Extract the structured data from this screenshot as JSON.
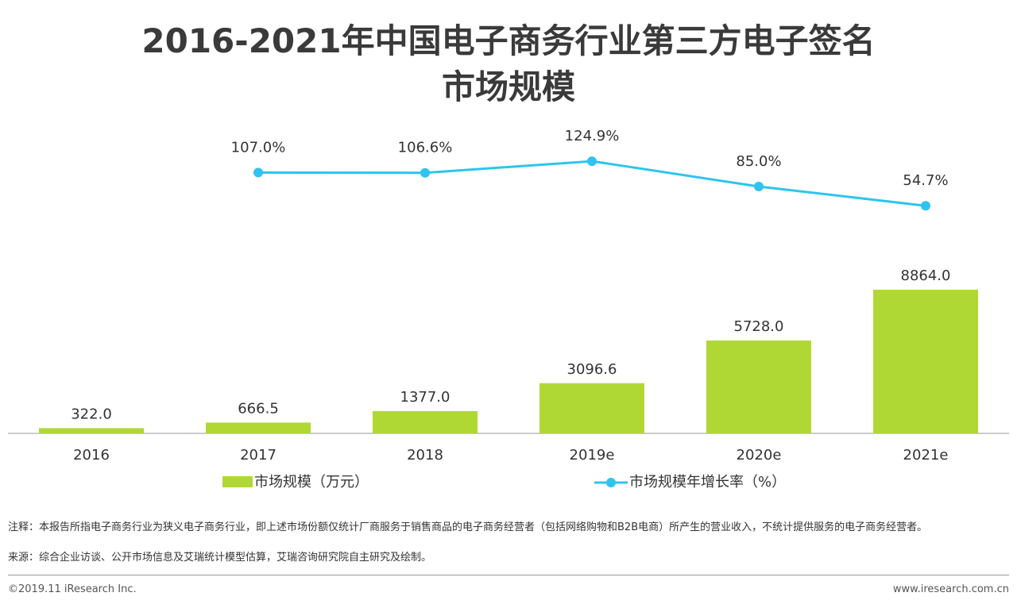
{
  "chart_data": {
    "type": "bar-line",
    "title": [
      "2016-2021年中国电子商务行业第三方电子签名",
      "市场规模"
    ],
    "categories": [
      "2016",
      "2017",
      "2018",
      "2019e",
      "2020e",
      "2021e"
    ],
    "series": [
      {
        "name": "市场规模（万元）",
        "type": "bar",
        "color": "#afd834",
        "values": [
          322.0,
          666.5,
          1377.0,
          3096.6,
          5728.0,
          8864.0
        ],
        "value_labels": [
          "322.0",
          "666.5",
          "1377.0",
          "3096.6",
          "5728.0",
          "8864.0"
        ]
      },
      {
        "name": "市场规模年增长率（%）",
        "type": "line",
        "color": "#2ec4ee",
        "values": [
          null,
          107.0,
          106.6,
          124.9,
          85.0,
          54.7
        ],
        "value_labels": [
          null,
          "107.0%",
          "106.6%",
          "124.9%",
          "85.0%",
          "54.7%"
        ]
      }
    ]
  },
  "notes": "注释：本报告所指电子商务行业为狭义电子商务行业，即上述市场份额仅统计厂商服务于销售商品的电子商务经营者（包括网络购物和B2B电商）所产生的营业收入，不统计提供服务的电子商务经营者。",
  "source": "来源：综合企业访谈、公开市场信息及艾瑞统计模型估算，艾瑞咨询研究院自主研究及绘制。",
  "copyright": "©2019.11 iResearch Inc.",
  "website": "www.iresearch.com.cn"
}
